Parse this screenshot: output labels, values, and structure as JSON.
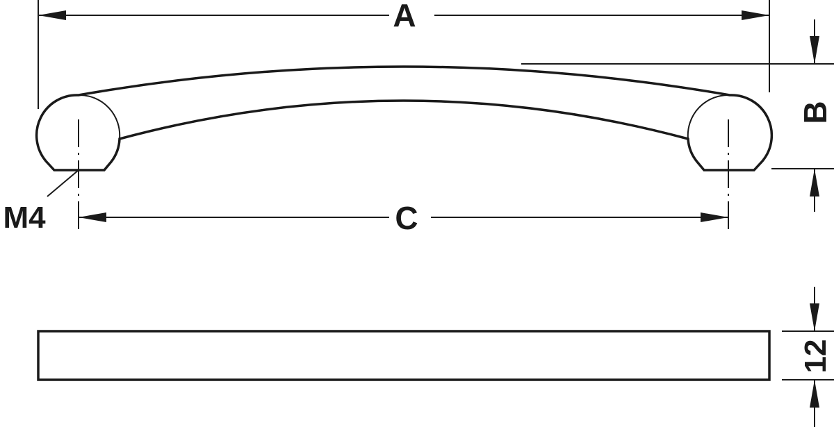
{
  "labels": {
    "length_overall": "A",
    "height": "B",
    "hole_spacing": "C",
    "thread": "M4",
    "thickness": "12"
  },
  "colors": {
    "line": "#1a1a1a",
    "background": "#ffffff"
  }
}
